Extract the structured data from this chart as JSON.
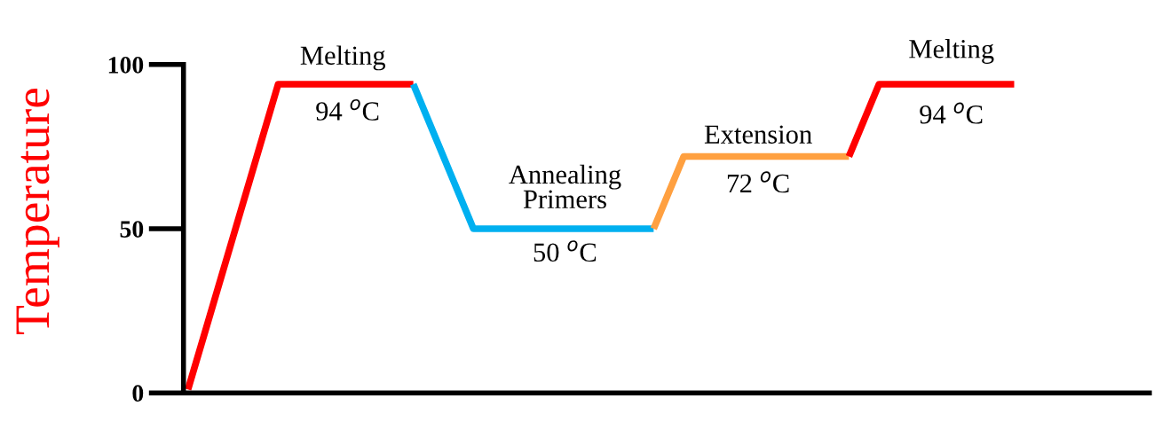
{
  "chart_data": {
    "type": "line",
    "ylabel": "Temperature",
    "categories": [
      null,
      null,
      null,
      null,
      null,
      null,
      null,
      null,
      null,
      null,
      null,
      null,
      null,
      null,
      null,
      null,
      null,
      null,
      null,
      null,
      null,
      null,
      null,
      null,
      null,
      null,
      null,
      null,
      null,
      null,
      null,
      null,
      null,
      null,
      null,
      null,
      null,
      null,
      null,
      null,
      null,
      null,
      null,
      null,
      null,
      null,
      null,
      null,
      null,
      null,
      null,
      null,
      null,
      null,
      null,
      null,
      null,
      null,
      null,
      null,
      null,
      null,
      null,
      null,
      null
    ],
    "ylim": [
      0,
      100
    ],
    "yticks": [
      0,
      50,
      100
    ],
    "grid": false,
    "marker": "none",
    "line_style": "solid",
    "series": [
      {
        "color": "#ff0000",
        "values": [
          1,
          16.5,
          32,
          47.5,
          63,
          78.5,
          94,
          94,
          94,
          94,
          94,
          94,
          94,
          94,
          94,
          94,
          null,
          null,
          null,
          null,
          null,
          null,
          null,
          null,
          null,
          null,
          null,
          null,
          null,
          null,
          null,
          null,
          null,
          null,
          null,
          null,
          null,
          null,
          null,
          null,
          null,
          null,
          null,
          null,
          null,
          null,
          null,
          null,
          null,
          null,
          null,
          null,
          null,
          null,
          null,
          null,
          null,
          null,
          null,
          null,
          null,
          null,
          null,
          null,
          null
        ]
      },
      {
        "color": "#00b0f0",
        "values": [
          null,
          null,
          null,
          null,
          null,
          null,
          null,
          null,
          null,
          null,
          null,
          null,
          null,
          null,
          null,
          94,
          83,
          72,
          61,
          50,
          50,
          50,
          50,
          50,
          50,
          50,
          50,
          50,
          50,
          50,
          50,
          50,
          null,
          null,
          null,
          null,
          null,
          null,
          null,
          null,
          null,
          null,
          null,
          null,
          null,
          null,
          null,
          null,
          null,
          null,
          null,
          null,
          null,
          null,
          null,
          null,
          null,
          null,
          null,
          null,
          null,
          null,
          null,
          null,
          null
        ]
      },
      {
        "color": "#ffa040",
        "values": [
          null,
          null,
          null,
          null,
          null,
          null,
          null,
          null,
          null,
          null,
          null,
          null,
          null,
          null,
          null,
          null,
          null,
          null,
          null,
          null,
          null,
          null,
          null,
          null,
          null,
          null,
          null,
          null,
          null,
          null,
          null,
          50,
          61,
          72,
          72,
          72,
          72,
          72,
          72,
          72,
          72,
          72,
          72,
          72,
          72,
          null,
          null,
          null,
          null,
          null,
          null,
          null,
          null,
          null,
          null,
          null,
          null,
          null,
          null,
          null,
          null,
          null,
          null,
          null,
          null
        ]
      },
      {
        "color": "#ff0000",
        "values": [
          null,
          null,
          null,
          null,
          null,
          null,
          null,
          null,
          null,
          null,
          null,
          null,
          null,
          null,
          null,
          null,
          null,
          null,
          null,
          null,
          null,
          null,
          null,
          null,
          null,
          null,
          null,
          null,
          null,
          null,
          null,
          null,
          null,
          null,
          null,
          null,
          null,
          null,
          null,
          null,
          null,
          null,
          null,
          null,
          72,
          83,
          94,
          94,
          94,
          94,
          94,
          94,
          94,
          94,
          94,
          94,
          null,
          null,
          null,
          null,
          null,
          null,
          null,
          null,
          null
        ]
      }
    ],
    "annotations": [
      "Melting",
      "94 $^{o}$C",
      "Annealing\nPrimers",
      "50 $^{o}$C",
      "Extension",
      "72 $^{o}$C",
      "Melting",
      "94 $^{o}$C"
    ]
  }
}
